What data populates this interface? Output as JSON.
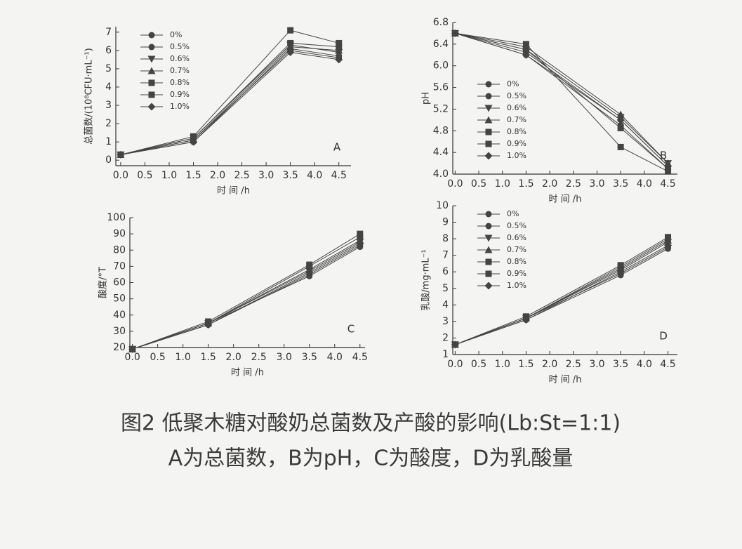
{
  "chart_data": [
    {
      "type": "line",
      "panel": "A",
      "xlabel": "时 间 /h",
      "ylabel": "总菌数/(10⁸CFU·mL⁻¹)",
      "x": [
        0,
        1.5,
        3.5,
        4.5
      ],
      "xlim": [
        -0.1,
        4.75
      ],
      "xticks": [
        {
          "value": 0,
          "label": "0.0"
        },
        0.5,
        {
          "value": 1,
          "label": "1.0"
        },
        1.5,
        {
          "value": 2,
          "label": "2.0"
        },
        2.5,
        {
          "value": 3,
          "label": "3.0"
        },
        3.5,
        {
          "value": 4,
          "label": "4.0"
        },
        4.5
      ],
      "ylim": [
        -0.3,
        7.3
      ],
      "yticks": [
        0,
        1,
        2,
        3,
        4,
        5,
        6,
        7
      ],
      "legend": "upper left",
      "series": [
        {
          "name": "0%",
          "color": "#444",
          "marker": "circle",
          "values": [
            0.3,
            1.1,
            6.0,
            5.6
          ]
        },
        {
          "name": "0.5%",
          "color": "#444",
          "marker": "circle",
          "values": [
            0.3,
            1.0,
            6.1,
            5.7
          ]
        },
        {
          "name": "0.6%",
          "color": "#444",
          "marker": "triangle-down",
          "values": [
            0.3,
            1.2,
            6.3,
            5.9
          ]
        },
        {
          "name": "0.7%",
          "color": "#444",
          "marker": "triangle-up",
          "values": [
            0.3,
            1.1,
            6.2,
            6.0
          ]
        },
        {
          "name": "0.8%",
          "color": "#444",
          "marker": "square",
          "values": [
            0.3,
            1.3,
            7.1,
            6.4
          ]
        },
        {
          "name": "0.9%",
          "color": "#444",
          "marker": "square",
          "values": [
            0.3,
            1.2,
            6.4,
            6.2
          ]
        },
        {
          "name": "1.0%",
          "color": "#444",
          "marker": "diamond",
          "values": [
            0.3,
            1.0,
            5.9,
            5.5
          ]
        }
      ]
    },
    {
      "type": "line",
      "panel": "B",
      "xlabel": "时 间 /h",
      "ylabel": "pH",
      "x": [
        0,
        1.5,
        3.5,
        4.5
      ],
      "xlim": [
        -0.05,
        4.7
      ],
      "xticks": [
        {
          "value": 0,
          "label": "0.0"
        },
        0.5,
        {
          "value": 1,
          "label": "1.0"
        },
        1.5,
        {
          "value": 2,
          "label": "2.0"
        },
        2.5,
        {
          "value": 3,
          "label": "3.0"
        },
        3.5,
        {
          "value": 4,
          "label": "4.0"
        },
        4.5
      ],
      "ylim": [
        4.0,
        6.8
      ],
      "yticks": [
        {
          "value": 4,
          "label": "4.0"
        },
        4.4,
        4.8,
        5.2,
        5.6,
        {
          "value": 6,
          "label": "6.0"
        },
        6.4,
        6.8
      ],
      "legend": "lower left",
      "series": [
        {
          "name": "0%",
          "color": "#444",
          "marker": "circle",
          "values": [
            6.6,
            6.2,
            4.9,
            4.1
          ]
        },
        {
          "name": "0.5%",
          "color": "#444",
          "marker": "circle",
          "values": [
            6.6,
            6.25,
            5.0,
            4.15
          ]
        },
        {
          "name": "0.6%",
          "color": "#444",
          "marker": "triangle-down",
          "values": [
            6.6,
            6.3,
            5.05,
            4.2
          ]
        },
        {
          "name": "0.7%",
          "color": "#444",
          "marker": "triangle-up",
          "values": [
            6.6,
            6.35,
            5.1,
            4.2
          ]
        },
        {
          "name": "0.8%",
          "color": "#444",
          "marker": "square",
          "values": [
            6.6,
            6.4,
            4.5,
            4.05
          ]
        },
        {
          "name": "0.9%",
          "color": "#444",
          "marker": "square",
          "values": [
            6.6,
            6.3,
            4.85,
            4.1
          ]
        },
        {
          "name": "1.0%",
          "color": "#444",
          "marker": "diamond",
          "values": [
            6.6,
            6.2,
            5.0,
            4.15
          ]
        }
      ]
    },
    {
      "type": "line",
      "panel": "C",
      "xlabel": "时 间 /h",
      "ylabel": "酸度/°T",
      "x": [
        0,
        1.5,
        3.5,
        4.5
      ],
      "xlim": [
        -0.05,
        4.6
      ],
      "xticks": [
        {
          "value": 0,
          "label": "0.0"
        },
        0.5,
        {
          "value": 1,
          "label": "1.0"
        },
        1.5,
        {
          "value": 2,
          "label": "2.0"
        },
        2.5,
        {
          "value": 3,
          "label": "3.0"
        },
        3.5,
        {
          "value": 4,
          "label": "4.0"
        },
        4.5
      ],
      "ylim": [
        20,
        100
      ],
      "yticks": [
        20,
        30,
        40,
        50,
        60,
        70,
        80,
        90,
        100
      ],
      "series": [
        {
          "color": "#444",
          "marker": "circle",
          "values": [
            19,
            35,
            64,
            82
          ]
        },
        {
          "color": "#444",
          "marker": "circle",
          "values": [
            19,
            34,
            65,
            83
          ]
        },
        {
          "color": "#444",
          "marker": "triangle-down",
          "values": [
            19,
            35,
            67,
            85
          ]
        },
        {
          "color": "#444",
          "marker": "triangle-up",
          "values": [
            19,
            35,
            68,
            86
          ]
        },
        {
          "color": "#444",
          "marker": "square",
          "values": [
            19,
            36,
            71,
            90
          ]
        },
        {
          "color": "#444",
          "marker": "square",
          "values": [
            19,
            35,
            70,
            88
          ]
        },
        {
          "color": "#444",
          "marker": "diamond",
          "values": [
            19,
            34,
            66,
            84
          ]
        }
      ]
    },
    {
      "type": "line",
      "panel": "D",
      "xlabel": "时 间 /h",
      "ylabel": "乳酸/mg·mL⁻¹",
      "x": [
        0,
        1.5,
        3.5,
        4.5
      ],
      "xlim": [
        -0.05,
        4.7
      ],
      "xticks": [
        {
          "value": 0,
          "label": "0.0"
        },
        0.5,
        {
          "value": 1,
          "label": "1.0"
        },
        1.5,
        {
          "value": 2,
          "label": "2.0"
        },
        2.5,
        {
          "value": 3,
          "label": "3.0"
        },
        3.5,
        {
          "value": 4,
          "label": "4.0"
        },
        4.5
      ],
      "ylim": [
        1,
        10
      ],
      "yticks": [
        1,
        2,
        3,
        4,
        5,
        6,
        7,
        8,
        9,
        10
      ],
      "legend": "upper left",
      "series": [
        {
          "name": "0%",
          "color": "#444",
          "marker": "circle",
          "values": [
            1.6,
            3.1,
            5.8,
            7.4
          ]
        },
        {
          "name": "0.5%",
          "color": "#444",
          "marker": "circle",
          "values": [
            1.6,
            3.2,
            5.9,
            7.5
          ]
        },
        {
          "name": "0.6%",
          "color": "#444",
          "marker": "triangle-down",
          "values": [
            1.6,
            3.2,
            6.1,
            7.8
          ]
        },
        {
          "name": "0.7%",
          "color": "#444",
          "marker": "triangle-up",
          "values": [
            1.6,
            3.2,
            6.2,
            7.9
          ]
        },
        {
          "name": "0.8%",
          "color": "#444",
          "marker": "square",
          "values": [
            1.6,
            3.3,
            6.4,
            8.1
          ]
        },
        {
          "name": "0.9%",
          "color": "#444",
          "marker": "square",
          "values": [
            1.6,
            3.2,
            6.3,
            8.0
          ]
        },
        {
          "name": "1.0%",
          "color": "#444",
          "marker": "diamond",
          "values": [
            1.6,
            3.1,
            6.0,
            7.6
          ]
        }
      ]
    }
  ],
  "caption": [
    "图2 低聚木糖对酸奶总菌数及产酸的影响(Lb:St=1:1)",
    "A为总菌数，B为pH，C为酸度，D为乳酸量"
  ]
}
